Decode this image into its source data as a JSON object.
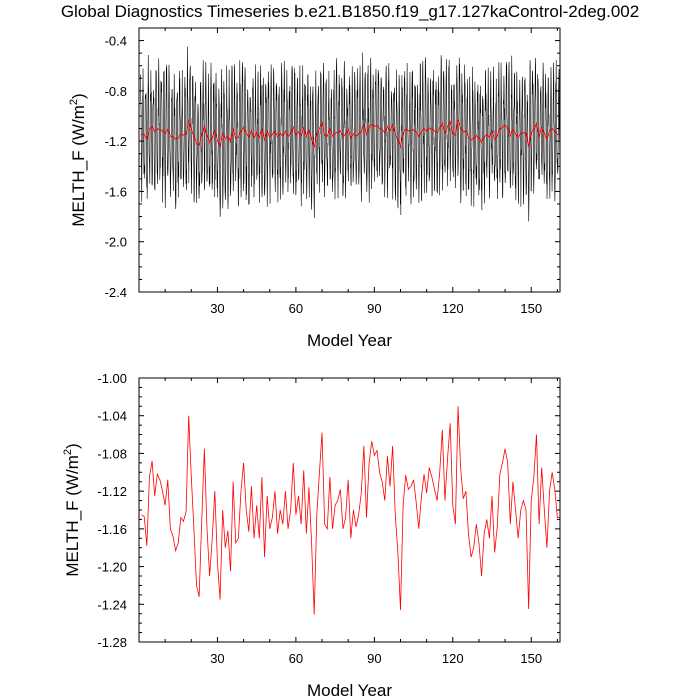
{
  "title": "Global Diagnostics Timeseries b.e21.B1850.f19_g17.127kaControl-2deg.002",
  "colors": {
    "monthly": "#000000",
    "annual": "#ff0000",
    "frame": "#000000"
  },
  "chart_data": [
    {
      "type": "line",
      "xlabel": "Model Year",
      "ylabel_base": "MELTH_F (W/m",
      "ylabel_sup": "2",
      "ylabel_close": ")",
      "xlim": [
        0,
        161
      ],
      "ylim": [
        -2.4,
        -0.3
      ],
      "xticks": [
        30,
        60,
        90,
        120,
        150
      ],
      "yticks": [
        -2.4,
        -2.0,
        -1.6,
        -1.2,
        -0.8,
        -0.4
      ],
      "yticklabels": [
        "-2.4",
        "-2.0",
        "-1.6",
        "-1.2",
        "-0.8",
        "-0.4"
      ],
      "series": [
        {
          "role": "monthly",
          "color": "#000000",
          "mean": -1.14,
          "amplitude": 0.42,
          "noise": 0.18,
          "samples_per_year": 12
        },
        {
          "role": "annual",
          "color": "#ff0000"
        }
      ]
    },
    {
      "type": "line",
      "xlabel": "Model Year",
      "ylabel_base": "MELTH_F (W/m",
      "ylabel_sup": "2",
      "ylabel_close": ")",
      "xlim": [
        0,
        161
      ],
      "ylim": [
        -1.28,
        -1.0
      ],
      "xticks": [
        30,
        60,
        90,
        120,
        150
      ],
      "yticks": [
        -1.28,
        -1.24,
        -1.2,
        -1.16,
        -1.12,
        -1.08,
        -1.04,
        -1.0
      ],
      "yticklabels": [
        "-1.28",
        "-1.24",
        "-1.20",
        "-1.16",
        "-1.12",
        "-1.08",
        "-1.04",
        "-1.00"
      ],
      "series": [
        {
          "role": "annual",
          "color": "#ff0000",
          "x_start": 1,
          "values": [
            -1.145,
            -1.147,
            -1.178,
            -1.105,
            -1.088,
            -1.125,
            -1.102,
            -1.108,
            -1.12,
            -1.135,
            -1.108,
            -1.16,
            -1.168,
            -1.183,
            -1.175,
            -1.148,
            -1.152,
            -1.142,
            -1.04,
            -1.105,
            -1.16,
            -1.22,
            -1.232,
            -1.15,
            -1.075,
            -1.16,
            -1.21,
            -1.17,
            -1.12,
            -1.195,
            -1.235,
            -1.14,
            -1.18,
            -1.162,
            -1.205,
            -1.11,
            -1.175,
            -1.17,
            -1.12,
            -1.09,
            -1.14,
            -1.163,
            -1.115,
            -1.17,
            -1.135,
            -1.17,
            -1.105,
            -1.19,
            -1.125,
            -1.16,
            -1.148,
            -1.12,
            -1.165,
            -1.14,
            -1.155,
            -1.12,
            -1.16,
            -1.14,
            -1.09,
            -1.145,
            -1.125,
            -1.155,
            -1.098,
            -1.165,
            -1.116,
            -1.175,
            -1.251,
            -1.145,
            -1.1,
            -1.058,
            -1.155,
            -1.16,
            -1.105,
            -1.16,
            -1.135,
            -1.13,
            -1.118,
            -1.16,
            -1.148,
            -1.108,
            -1.17,
            -1.14,
            -1.158,
            -1.145,
            -1.122,
            -1.072,
            -1.148,
            -1.09,
            -1.067,
            -1.082,
            -1.077,
            -1.1,
            -1.11,
            -1.13,
            -1.083,
            -1.115,
            -1.072,
            -1.145,
            -1.185,
            -1.246,
            -1.135,
            -1.103,
            -1.118,
            -1.115,
            -1.108,
            -1.132,
            -1.16,
            -1.126,
            -1.102,
            -1.122,
            -1.095,
            -1.105,
            -1.118,
            -1.13,
            -1.1,
            -1.055,
            -1.13,
            -1.085,
            -1.048,
            -1.135,
            -1.155,
            -1.03,
            -1.095,
            -1.128,
            -1.12,
            -1.165,
            -1.19,
            -1.18,
            -1.155,
            -1.175,
            -1.21,
            -1.165,
            -1.15,
            -1.17,
            -1.125,
            -1.185,
            -1.158,
            -1.102,
            -1.09,
            -1.075,
            -1.09,
            -1.155,
            -1.11,
            -1.14,
            -1.17,
            -1.14,
            -1.13,
            -1.14,
            -1.245,
            -1.13,
            -1.105,
            -1.06,
            -1.155,
            -1.095,
            -1.14,
            -1.18,
            -1.12,
            -1.1,
            -1.118,
            -1.148,
            -1.148,
            -1.18
          ]
        }
      ]
    }
  ]
}
